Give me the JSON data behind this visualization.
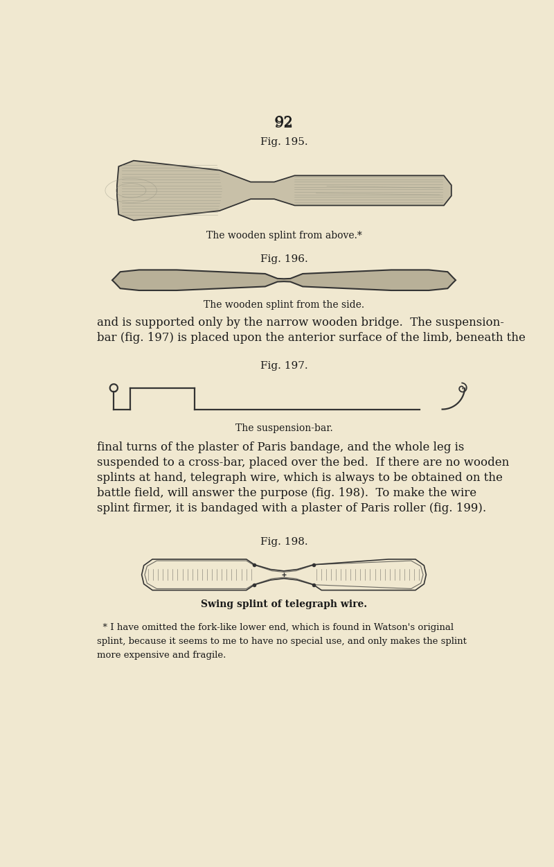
{
  "bg_color": "#f0e8d0",
  "text_color": "#1a1a1a",
  "page_number": "92",
  "fig195_label": "Fig. 195.",
  "fig195_caption": "The wooden splint from above.*",
  "fig196_label": "Fig. 196.",
  "fig196_caption": "The wooden splint from the side.",
  "text_block1_line1": "and is supported only by the narrow wooden bridge.  The suspension-",
  "text_block1_line2": "bar (fig. 197) is placed upon the anterior surface of the limb, beneath the",
  "fig197_label": "Fig. 197.",
  "fig197_caption": "The suspension-bar.",
  "text_block2_line1": "final turns of the plaster of Paris bandage, and the whole leg is",
  "text_block2_line2": "suspended to a cross-bar, placed over the bed.  If there are no wooden",
  "text_block2_line3": "splints at hand, telegraph wire, which is always to be obtained on the",
  "text_block2_line4": "battle field, will answer the purpose (fig. 198).  To make the wire",
  "text_block2_line5": "splint firmer, it is bandaged with a plaster of Paris roller (fig. 199).",
  "fig198_label": "Fig. 198.",
  "fig198_caption": "Swing splint of telegraph wire.",
  "footnote_line1": "  * I have omitted the fork-like lower end, which is found in Watson's original",
  "footnote_line2": "splint, because it seems to me to have no special use, and only makes the splint",
  "footnote_line3": "more expensive and fragile.",
  "draw_color": "#333333",
  "wood_fill": "#c8c0a8",
  "wood_shade": "#909080",
  "wood_light": "#e0d8c0"
}
